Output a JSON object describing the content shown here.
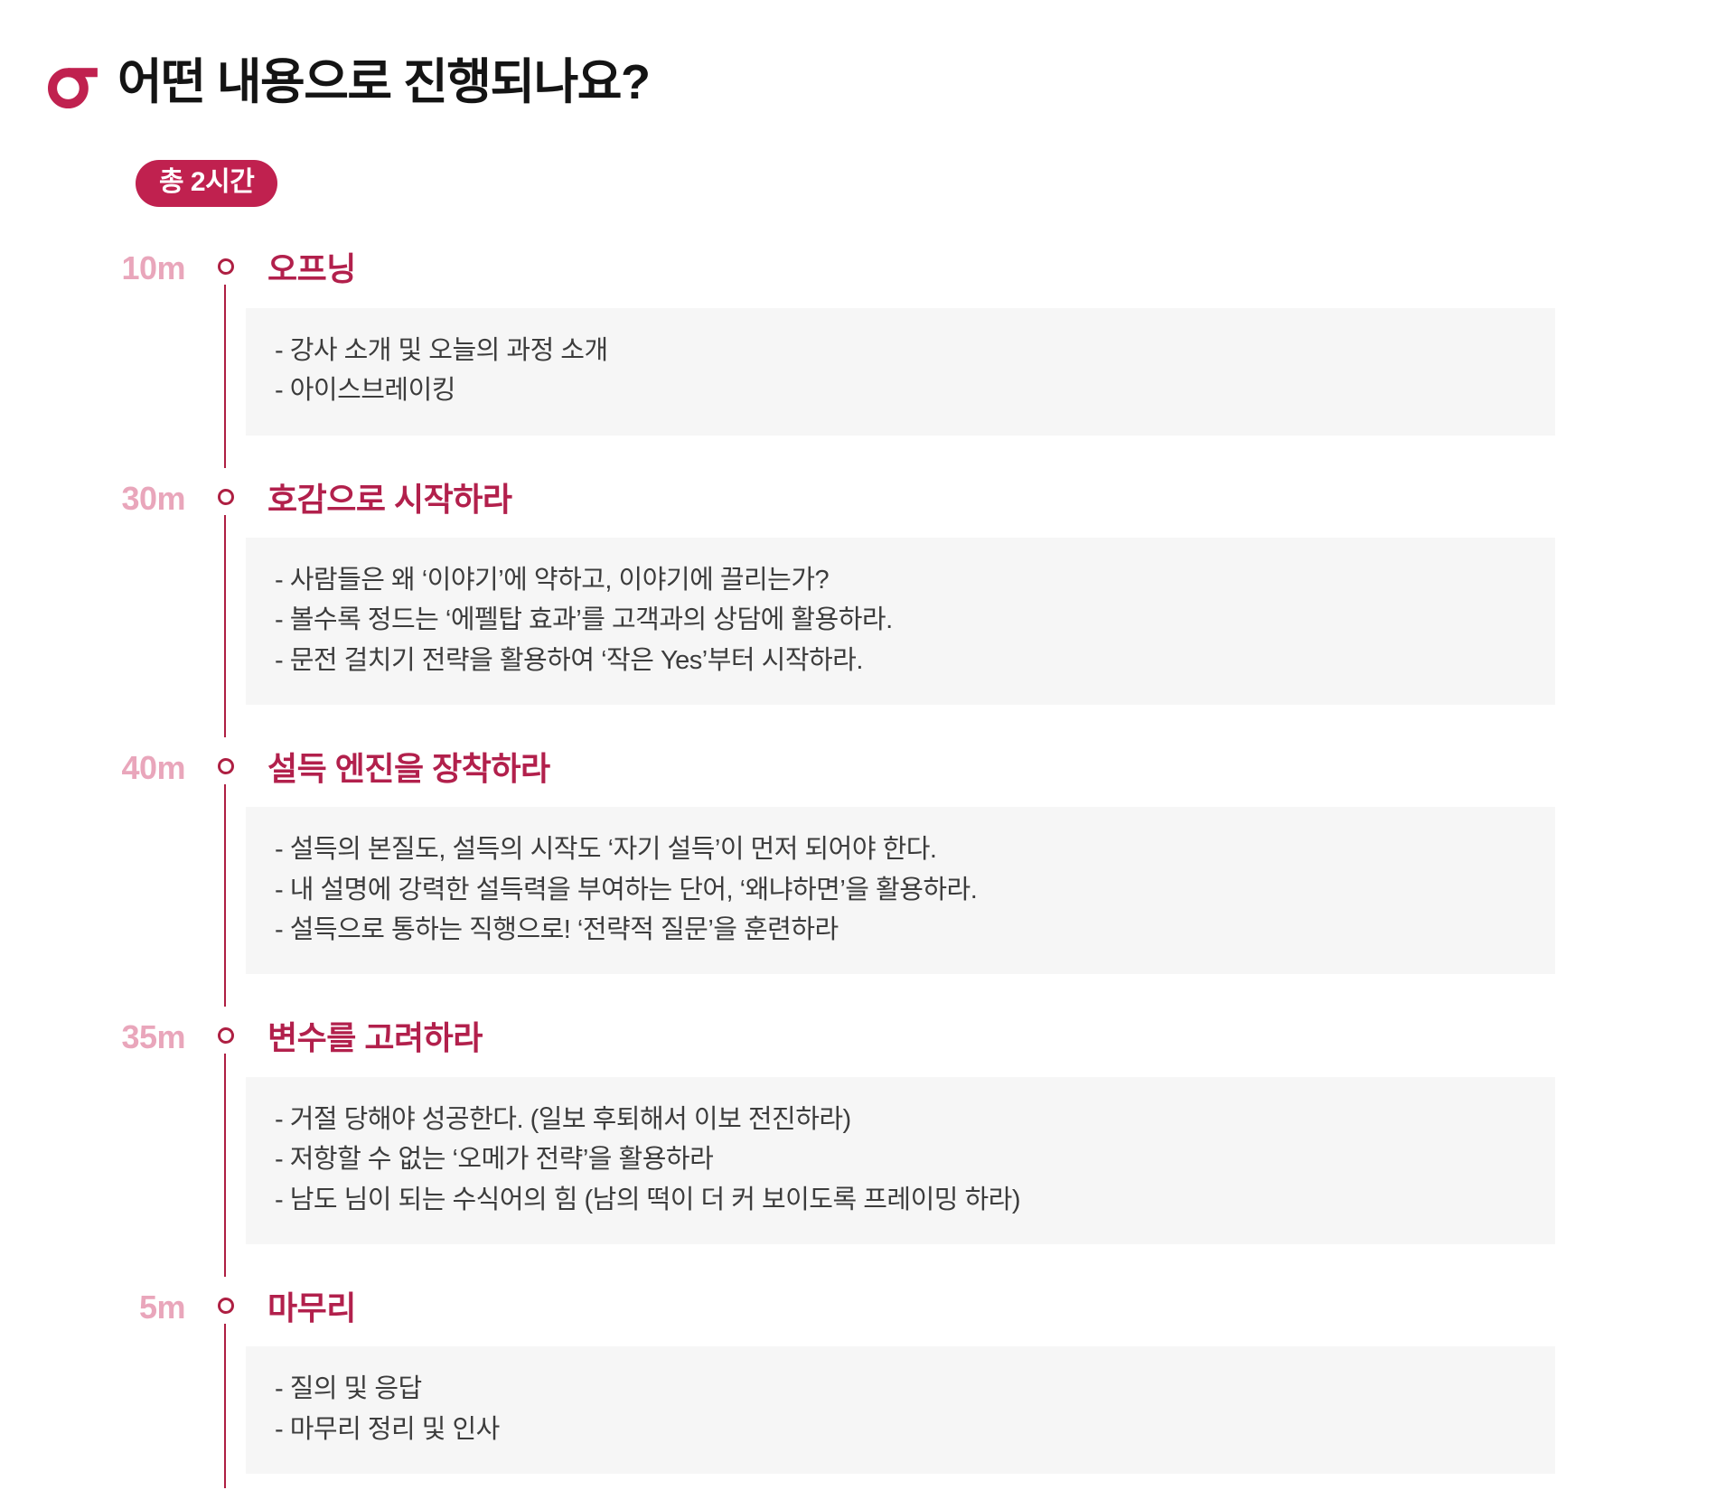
{
  "header": {
    "logo": "brand-logo",
    "title": "어떤 내용으로 진행되나요?",
    "duration_badge": "총 2시간"
  },
  "timeline": {
    "bullet_prefix": "- ",
    "sections": [
      {
        "time": "10m",
        "title": "오프닝",
        "bullets": [
          "강사 소개 및 오늘의 과정 소개",
          "아이스브레이킹"
        ]
      },
      {
        "time": "30m",
        "title": "호감으로 시작하라",
        "bullets": [
          "사람들은 왜 ‘이야기’에 약하고, 이야기에 끌리는가?",
          "볼수록 정드는 ‘에펠탑 효과’를 고객과의 상담에 활용하라.",
          "문전 걸치기 전략을 활용하여 ‘작은 Yes’부터 시작하라."
        ]
      },
      {
        "time": "40m",
        "title": "설득 엔진을 장착하라",
        "bullets": [
          "설득의 본질도, 설득의 시작도 ‘자기 설득’이 먼저 되어야 한다.",
          "내 설명에 강력한 설득력을 부여하는 단어, ‘왜냐하면’을 활용하라.",
          "설득으로 통하는 직행으로! ‘전략적 질문’을 훈련하라"
        ]
      },
      {
        "time": "35m",
        "title": "변수를 고려하라",
        "bullets": [
          "거절 당해야 성공한다. (일보 후퇴해서 이보 전진하라)",
          "저항할 수 없는 ‘오메가 전략’을 활용하라",
          "남도 님이 되는 수식어의 힘 (남의 떡이 더 커 보이도록 프레이밍 하라)"
        ]
      },
      {
        "time": "5m",
        "title": "마무리",
        "bullets": [
          "질의 및 응답",
          "마무리 정리 및 인사"
        ]
      }
    ]
  },
  "colors": {
    "accent": "#c0214f",
    "section_title": "#b2204c",
    "timeline_line": "#ae1f42",
    "time_label": "#e9a6bb",
    "box_background": "#f6f6f6",
    "bullet_text": "#3c3c3c",
    "title_text": "#141414",
    "badge_text": "#ffffff"
  }
}
